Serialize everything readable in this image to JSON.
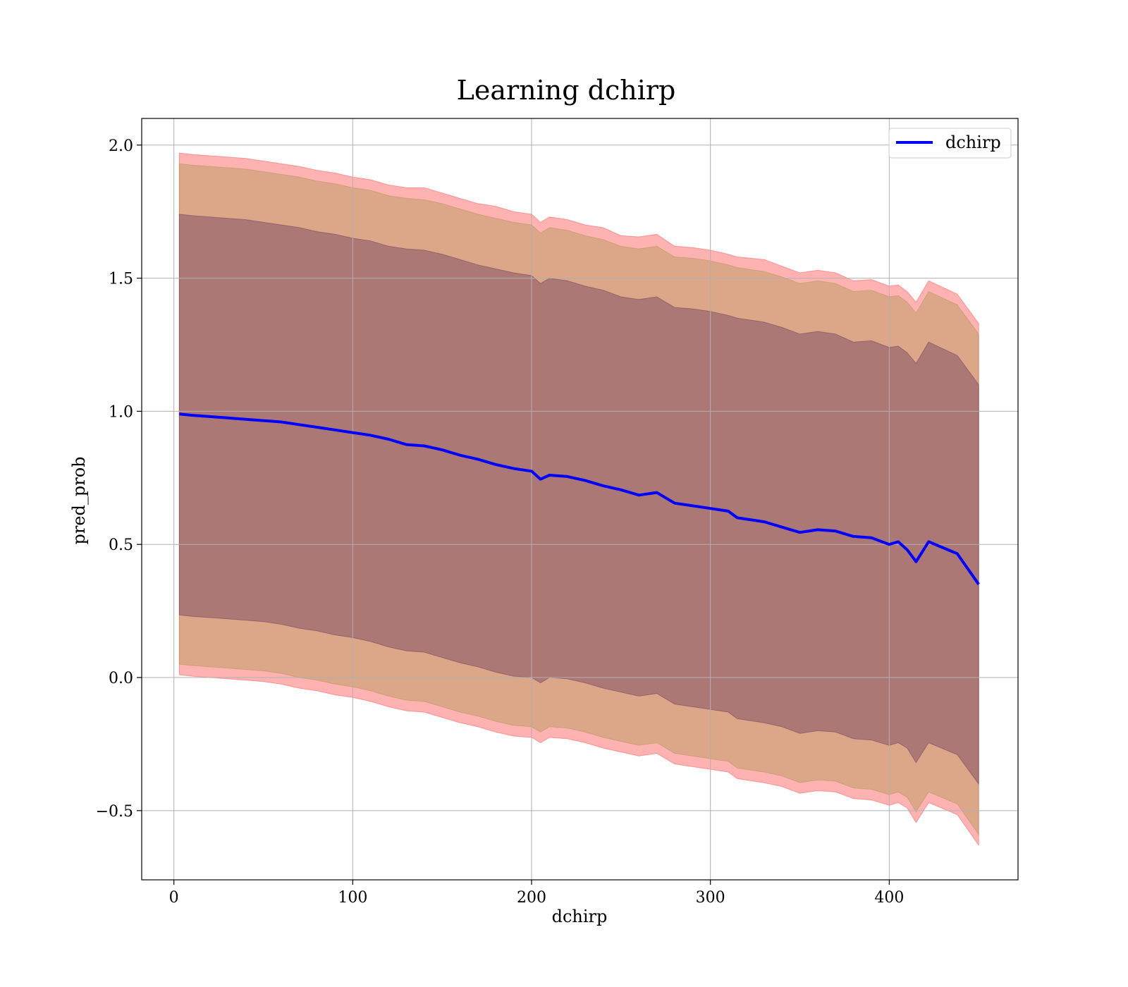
{
  "chart_data": {
    "type": "line",
    "title": "Learning dchirp",
    "xlabel": "dchirp",
    "ylabel": "pred_prob",
    "xlim": [
      -18,
      472
    ],
    "ylim": [
      -0.76,
      2.1
    ],
    "grid": true,
    "legend_position": "top-right",
    "x_ticks": [
      0,
      100,
      200,
      300,
      400
    ],
    "x_tick_labels": [
      "0",
      "100",
      "200",
      "300",
      "400"
    ],
    "y_ticks": [
      -0.5,
      0.0,
      0.5,
      1.0,
      1.5,
      2.0
    ],
    "y_tick_labels": [
      "−0.5",
      "0.0",
      "0.5",
      "1.0",
      "1.5",
      "2.0"
    ],
    "series": [
      {
        "name": "dchirp",
        "color": "#0000ff",
        "x": [
          3,
          10,
          20,
          30,
          40,
          50,
          60,
          70,
          80,
          90,
          100,
          110,
          120,
          130,
          140,
          150,
          160,
          170,
          180,
          190,
          200,
          205,
          210,
          220,
          230,
          240,
          250,
          260,
          270,
          280,
          290,
          300,
          310,
          315,
          330,
          340,
          350,
          360,
          370,
          380,
          390,
          400,
          405,
          410,
          415,
          422,
          438,
          450
        ],
        "values": [
          0.99,
          0.985,
          0.98,
          0.975,
          0.97,
          0.965,
          0.96,
          0.95,
          0.94,
          0.93,
          0.92,
          0.91,
          0.895,
          0.875,
          0.87,
          0.855,
          0.835,
          0.82,
          0.8,
          0.785,
          0.775,
          0.745,
          0.76,
          0.755,
          0.74,
          0.72,
          0.705,
          0.685,
          0.695,
          0.655,
          0.645,
          0.635,
          0.625,
          0.6,
          0.585,
          0.565,
          0.545,
          0.555,
          0.55,
          0.53,
          0.525,
          0.5,
          0.51,
          0.48,
          0.435,
          0.51,
          0.465,
          0.35
        ]
      }
    ],
    "bands": [
      {
        "color": "#ff0000",
        "opacity": 0.3,
        "x": [
          3,
          10,
          20,
          30,
          40,
          50,
          60,
          70,
          80,
          90,
          100,
          110,
          120,
          130,
          140,
          150,
          160,
          170,
          180,
          190,
          200,
          205,
          210,
          220,
          230,
          240,
          250,
          260,
          270,
          280,
          290,
          300,
          310,
          315,
          330,
          340,
          350,
          360,
          370,
          380,
          390,
          400,
          405,
          410,
          415,
          422,
          438,
          450
        ],
        "upper": [
          1.97,
          1.965,
          1.96,
          1.955,
          1.95,
          1.94,
          1.93,
          1.92,
          1.905,
          1.895,
          1.88,
          1.87,
          1.85,
          1.84,
          1.84,
          1.82,
          1.8,
          1.78,
          1.77,
          1.75,
          1.74,
          1.71,
          1.73,
          1.72,
          1.7,
          1.69,
          1.66,
          1.655,
          1.665,
          1.62,
          1.615,
          1.605,
          1.59,
          1.58,
          1.57,
          1.545,
          1.52,
          1.53,
          1.52,
          1.49,
          1.495,
          1.47,
          1.475,
          1.45,
          1.41,
          1.49,
          1.44,
          1.33
        ],
        "lower": [
          0.01,
          0.005,
          0.0,
          -0.005,
          -0.01,
          -0.015,
          -0.025,
          -0.04,
          -0.05,
          -0.065,
          -0.075,
          -0.09,
          -0.11,
          -0.125,
          -0.13,
          -0.15,
          -0.17,
          -0.185,
          -0.205,
          -0.22,
          -0.225,
          -0.245,
          -0.225,
          -0.23,
          -0.245,
          -0.265,
          -0.28,
          -0.295,
          -0.285,
          -0.325,
          -0.335,
          -0.345,
          -0.355,
          -0.38,
          -0.395,
          -0.41,
          -0.435,
          -0.425,
          -0.43,
          -0.455,
          -0.46,
          -0.48,
          -0.47,
          -0.49,
          -0.545,
          -0.47,
          -0.515,
          -0.63
        ]
      },
      {
        "color": "#8c8c2c",
        "opacity": 0.3,
        "x": [
          3,
          10,
          20,
          30,
          40,
          50,
          60,
          70,
          80,
          90,
          100,
          110,
          120,
          130,
          140,
          150,
          160,
          170,
          180,
          190,
          200,
          205,
          210,
          220,
          230,
          240,
          250,
          260,
          270,
          280,
          290,
          300,
          310,
          315,
          330,
          340,
          350,
          360,
          370,
          380,
          390,
          400,
          405,
          410,
          415,
          422,
          438,
          450
        ],
        "upper": [
          1.93,
          1.925,
          1.92,
          1.915,
          1.91,
          1.9,
          1.89,
          1.88,
          1.865,
          1.855,
          1.84,
          1.83,
          1.81,
          1.8,
          1.795,
          1.78,
          1.76,
          1.74,
          1.725,
          1.71,
          1.7,
          1.67,
          1.69,
          1.68,
          1.66,
          1.645,
          1.62,
          1.61,
          1.62,
          1.58,
          1.575,
          1.565,
          1.55,
          1.54,
          1.525,
          1.505,
          1.48,
          1.49,
          1.48,
          1.45,
          1.455,
          1.43,
          1.435,
          1.41,
          1.37,
          1.45,
          1.4,
          1.29
        ],
        "lower": [
          0.05,
          0.045,
          0.04,
          0.035,
          0.03,
          0.025,
          0.015,
          0.0,
          -0.01,
          -0.025,
          -0.035,
          -0.05,
          -0.07,
          -0.085,
          -0.09,
          -0.11,
          -0.13,
          -0.145,
          -0.165,
          -0.18,
          -0.185,
          -0.205,
          -0.185,
          -0.19,
          -0.205,
          -0.225,
          -0.24,
          -0.255,
          -0.245,
          -0.285,
          -0.295,
          -0.305,
          -0.315,
          -0.34,
          -0.355,
          -0.37,
          -0.395,
          -0.385,
          -0.39,
          -0.415,
          -0.42,
          -0.44,
          -0.43,
          -0.45,
          -0.505,
          -0.43,
          -0.475,
          -0.59
        ]
      },
      {
        "color": "#400d4a",
        "opacity": 0.3,
        "x": [
          3,
          10,
          20,
          30,
          40,
          50,
          60,
          70,
          80,
          90,
          100,
          110,
          120,
          130,
          140,
          150,
          160,
          170,
          180,
          190,
          200,
          205,
          210,
          220,
          230,
          240,
          250,
          260,
          270,
          280,
          290,
          300,
          310,
          315,
          330,
          340,
          350,
          360,
          370,
          380,
          390,
          400,
          405,
          410,
          415,
          422,
          438,
          450
        ],
        "upper": [
          1.74,
          1.735,
          1.73,
          1.725,
          1.72,
          1.71,
          1.7,
          1.69,
          1.675,
          1.665,
          1.65,
          1.64,
          1.62,
          1.61,
          1.605,
          1.59,
          1.57,
          1.55,
          1.535,
          1.52,
          1.51,
          1.48,
          1.5,
          1.49,
          1.47,
          1.455,
          1.43,
          1.42,
          1.43,
          1.39,
          1.385,
          1.375,
          1.36,
          1.35,
          1.335,
          1.315,
          1.29,
          1.3,
          1.29,
          1.26,
          1.265,
          1.24,
          1.245,
          1.22,
          1.18,
          1.26,
          1.21,
          1.1
        ],
        "lower": [
          0.235,
          0.23,
          0.225,
          0.22,
          0.215,
          0.21,
          0.2,
          0.185,
          0.175,
          0.16,
          0.15,
          0.135,
          0.115,
          0.1,
          0.095,
          0.075,
          0.055,
          0.04,
          0.02,
          0.005,
          0.0,
          -0.02,
          0.0,
          -0.005,
          -0.02,
          -0.04,
          -0.055,
          -0.07,
          -0.06,
          -0.1,
          -0.11,
          -0.12,
          -0.13,
          -0.155,
          -0.17,
          -0.185,
          -0.21,
          -0.2,
          -0.205,
          -0.23,
          -0.235,
          -0.255,
          -0.245,
          -0.265,
          -0.32,
          -0.245,
          -0.29,
          -0.4
        ]
      }
    ]
  }
}
